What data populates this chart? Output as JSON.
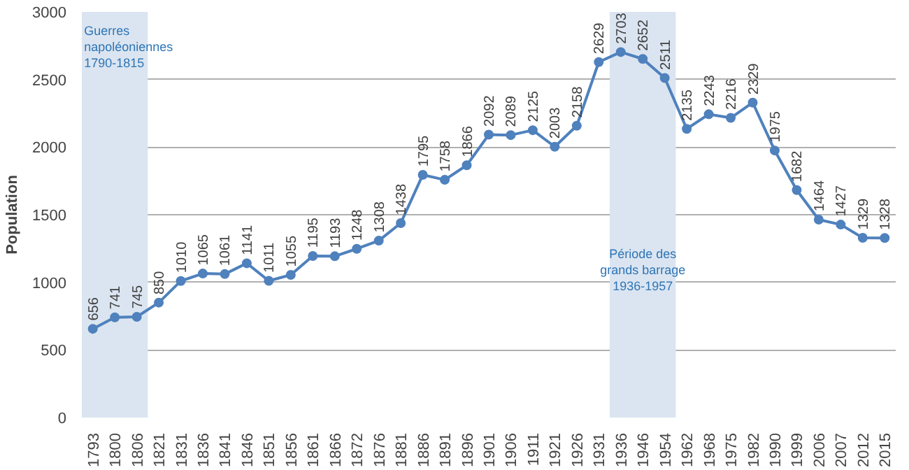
{
  "chart_data": {
    "type": "line",
    "ylabel": "Population",
    "categories": [
      "1793",
      "1800",
      "1806",
      "1821",
      "1831",
      "1836",
      "1841",
      "1846",
      "1851",
      "1856",
      "1861",
      "1866",
      "1872",
      "1876",
      "1881",
      "1886",
      "1891",
      "1896",
      "1901",
      "1906",
      "1911",
      "1921",
      "1926",
      "1931",
      "1936",
      "1946",
      "1954",
      "1962",
      "1968",
      "1975",
      "1982",
      "1990",
      "1999",
      "2006",
      "2007",
      "2012",
      "2015"
    ],
    "series": [
      {
        "color": "#4f81bd",
        "values": [
          656,
          741,
          745,
          850,
          1010,
          1065,
          1061,
          1141,
          1011,
          1055,
          1195,
          1193,
          1248,
          1308,
          1438,
          1795,
          1758,
          1866,
          2092,
          2089,
          2125,
          2003,
          2158,
          2629,
          2703,
          2652,
          2511,
          2135,
          2243,
          2216,
          2329,
          1975,
          1682,
          1464,
          1427,
          1329,
          1328
        ]
      }
    ],
    "ylim": [
      0,
      3000
    ],
    "yticks": [
      0,
      500,
      1000,
      1500,
      2000,
      2500,
      3000
    ],
    "bands": [
      {
        "axis": "x",
        "from": "1793",
        "to": "1806",
        "label": "Guerres\nnapoléoniennes\n1790-1815",
        "color": "#dbe5f1"
      },
      {
        "axis": "x",
        "from": "1936",
        "to": "1954",
        "label": "Période des\ngrands barrage\n1936-1957",
        "color": "#dbe5f1"
      }
    ],
    "grid": "y",
    "marker": "circle",
    "data_labels": true
  }
}
